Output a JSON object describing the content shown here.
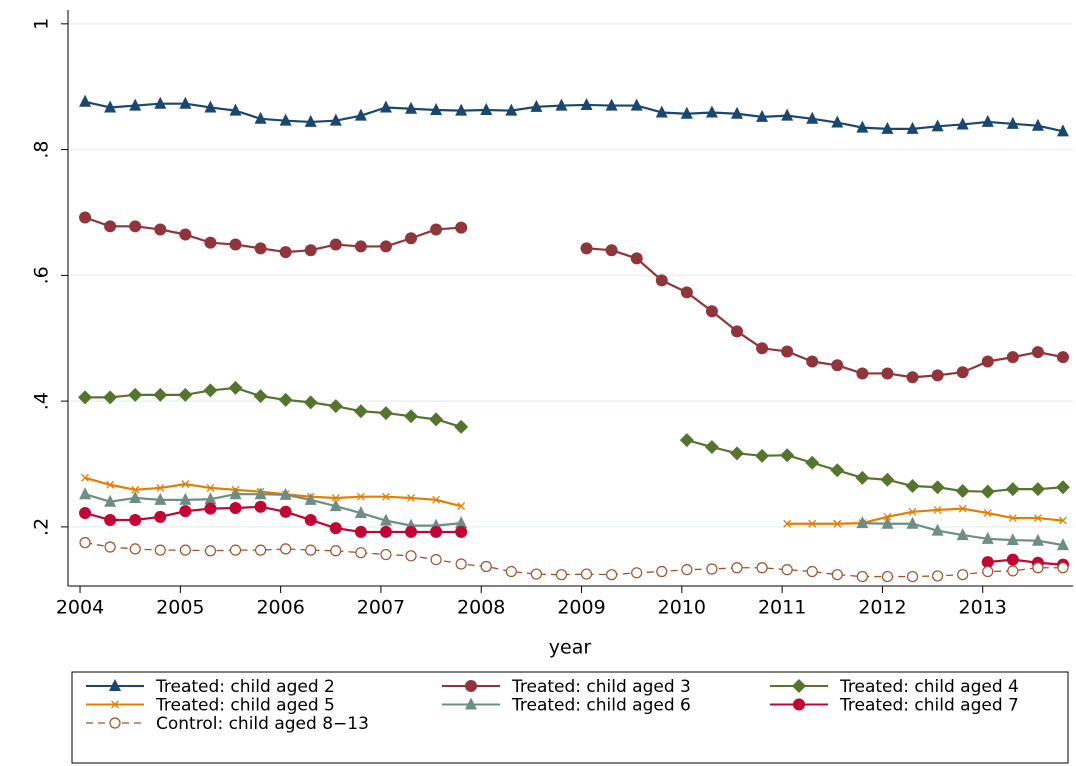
{
  "chart_data": {
    "type": "line",
    "x_label": "year",
    "x": [
      2004.05,
      2004.3,
      2004.55,
      2004.8,
      2005.05,
      2005.3,
      2005.55,
      2005.8,
      2006.05,
      2006.3,
      2006.55,
      2006.8,
      2007.05,
      2007.3,
      2007.55,
      2007.8,
      2008.05,
      2008.3,
      2008.55,
      2008.8,
      2009.05,
      2009.3,
      2009.55,
      2009.8,
      2010.05,
      2010.3,
      2010.55,
      2010.8,
      2011.05,
      2011.3,
      2011.55,
      2011.8,
      2012.05,
      2012.3,
      2012.55,
      2012.8,
      2013.05,
      2013.3,
      2013.55,
      2013.8
    ],
    "xlim": [
      2003.88,
      2013.9
    ],
    "xticks": [
      2004,
      2005,
      2006,
      2007,
      2008,
      2009,
      2010,
      2011,
      2012,
      2013
    ],
    "ylim": [
      0.106,
      1.022
    ],
    "yticks": [
      {
        "value": 0.2,
        "label": ".2"
      },
      {
        "value": 0.4,
        "label": ".4"
      },
      {
        "value": 0.6,
        "label": ".6"
      },
      {
        "value": 0.8,
        "label": ".8"
      },
      1
    ],
    "grid": true,
    "legend": "bottom",
    "series": [
      {
        "name": "Treated: child aged 2",
        "color": "#1a476f",
        "marker": "triangle",
        "values": [
          0.876,
          0.867,
          0.87,
          0.873,
          0.873,
          0.867,
          0.862,
          0.849,
          0.846,
          0.844,
          0.846,
          0.854,
          0.867,
          0.865,
          0.863,
          0.862,
          0.863,
          0.862,
          0.868,
          0.87,
          0.871,
          0.87,
          0.87,
          0.859,
          0.857,
          0.859,
          0.857,
          0.852,
          0.854,
          0.849,
          0.843,
          0.835,
          0.833,
          0.833,
          0.837,
          0.84,
          0.844,
          0.841,
          0.838,
          0.829
        ]
      },
      {
        "name": "Treated: child aged 3",
        "color": "#90353b",
        "marker": "circle",
        "values": [
          0.692,
          0.678,
          0.678,
          0.673,
          0.665,
          0.652,
          0.649,
          0.643,
          0.637,
          0.64,
          0.649,
          0.646,
          0.646,
          0.659,
          0.673,
          0.676,
          null,
          null,
          null,
          null,
          0.643,
          0.64,
          0.627,
          0.592,
          0.573,
          0.543,
          0.511,
          0.484,
          0.479,
          0.463,
          0.457,
          0.444,
          0.444,
          0.438,
          0.441,
          0.446,
          0.463,
          0.47,
          0.478,
          0.47
        ]
      },
      {
        "name": "Treated: child aged 4",
        "color": "#55752f",
        "marker": "diamond",
        "values": [
          0.406,
          0.406,
          0.41,
          0.41,
          0.41,
          0.417,
          0.421,
          0.408,
          0.402,
          0.398,
          0.392,
          0.384,
          0.381,
          0.376,
          0.371,
          0.359,
          null,
          null,
          null,
          null,
          null,
          null,
          null,
          null,
          0.338,
          0.327,
          0.317,
          0.313,
          0.314,
          0.302,
          0.29,
          0.278,
          0.275,
          0.265,
          0.263,
          0.257,
          0.256,
          0.26,
          0.26,
          0.263
        ]
      },
      {
        "name": "Treated: child aged 5",
        "color": "#e37e00",
        "marker": "x",
        "values": [
          0.278,
          0.267,
          0.259,
          0.262,
          0.268,
          0.262,
          0.259,
          0.256,
          0.252,
          0.248,
          0.246,
          0.248,
          0.248,
          0.246,
          0.243,
          0.233,
          null,
          null,
          null,
          null,
          null,
          null,
          null,
          null,
          null,
          null,
          null,
          null,
          0.205,
          0.205,
          0.205,
          0.206,
          0.216,
          0.224,
          0.227,
          0.229,
          0.222,
          0.214,
          0.214,
          0.21
        ]
      },
      {
        "name": "Treated: child aged 6",
        "color": "#6e8e84",
        "marker": "triangle",
        "values": [
          0.252,
          0.24,
          0.246,
          0.243,
          0.243,
          0.244,
          0.252,
          0.252,
          0.251,
          0.243,
          0.233,
          0.222,
          0.21,
          0.202,
          0.202,
          0.206,
          null,
          null,
          null,
          null,
          null,
          null,
          null,
          null,
          null,
          null,
          null,
          null,
          null,
          null,
          null,
          0.206,
          0.205,
          0.205,
          0.194,
          0.187,
          0.181,
          0.179,
          0.178,
          0.171
        ]
      },
      {
        "name": "Treated: child aged 7",
        "color": "#c10534",
        "marker": "circle",
        "values": [
          0.222,
          0.211,
          0.211,
          0.216,
          0.225,
          0.229,
          0.23,
          0.232,
          0.224,
          0.211,
          0.198,
          0.192,
          0.192,
          0.192,
          0.192,
          0.192,
          null,
          null,
          null,
          null,
          null,
          null,
          null,
          null,
          null,
          null,
          null,
          null,
          null,
          null,
          null,
          null,
          null,
          null,
          null,
          null,
          0.144,
          0.148,
          0.143,
          0.14
        ]
      },
      {
        "name": "Control: child aged 8−13",
        "color": "#a0522d",
        "marker": "hollow-circle",
        "line_style": "dash",
        "values": [
          0.175,
          0.168,
          0.165,
          0.163,
          0.163,
          0.162,
          0.163,
          0.163,
          0.165,
          0.163,
          0.162,
          0.159,
          0.156,
          0.154,
          0.148,
          0.141,
          0.137,
          0.129,
          0.125,
          0.124,
          0.125,
          0.124,
          0.127,
          0.129,
          0.132,
          0.133,
          0.135,
          0.135,
          0.132,
          0.129,
          0.124,
          0.121,
          0.121,
          0.121,
          0.122,
          0.124,
          0.129,
          0.13,
          0.135,
          0.135
        ]
      }
    ]
  }
}
